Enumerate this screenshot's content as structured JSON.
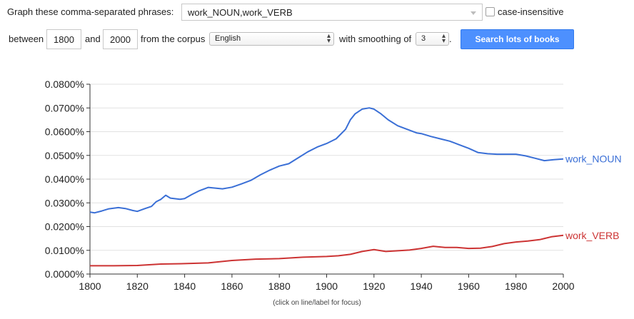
{
  "form": {
    "phrases_label": "Graph these comma-separated phrases:",
    "phrases_value": "work_NOUN,work_VERB",
    "case_insensitive_label": "case-insensitive",
    "between_label": "between",
    "start_year": "1800",
    "and_label": "and",
    "end_year": "2000",
    "corpus_label": "from the corpus",
    "corpus_value": "English",
    "smoothing_label": "with smoothing of",
    "smoothing_value": "3",
    "period": ".",
    "search_button": "Search lots of books"
  },
  "footer": {
    "focus_hint": "(click on line/label for focus)"
  },
  "chart_data": {
    "type": "line",
    "x_range": [
      1800,
      2000
    ],
    "y_range": [
      0,
      0.08
    ],
    "y_unit": "%",
    "x_ticks": [
      1800,
      1820,
      1840,
      1860,
      1880,
      1900,
      1920,
      1940,
      1960,
      1980,
      2000
    ],
    "y_ticks": [
      "0.0000%",
      "0.0100%",
      "0.0200%",
      "0.0300%",
      "0.0400%",
      "0.0500%",
      "0.0600%",
      "0.0700%",
      "0.0800%"
    ],
    "y_tick_values": [
      0,
      0.01,
      0.02,
      0.03,
      0.04,
      0.05,
      0.06,
      0.07,
      0.08
    ],
    "grid": true,
    "series": [
      {
        "name": "work_NOUN",
        "color": "#3a6fd6",
        "x": [
          1800,
          1802,
          1805,
          1808,
          1812,
          1815,
          1818,
          1820,
          1823,
          1826,
          1828,
          1830,
          1832,
          1834,
          1838,
          1840,
          1843,
          1846,
          1850,
          1853,
          1856,
          1860,
          1864,
          1868,
          1872,
          1876,
          1880,
          1884,
          1888,
          1892,
          1896,
          1900,
          1904,
          1908,
          1910,
          1912,
          1915,
          1918,
          1920,
          1923,
          1926,
          1930,
          1934,
          1938,
          1940,
          1944,
          1948,
          1952,
          1956,
          1960,
          1964,
          1968,
          1972,
          1976,
          1980,
          1984,
          1988,
          1992,
          1996,
          2000
        ],
        "values": [
          0.0261,
          0.0258,
          0.0266,
          0.0275,
          0.028,
          0.0276,
          0.0268,
          0.0264,
          0.0275,
          0.0285,
          0.0305,
          0.0315,
          0.0332,
          0.032,
          0.0315,
          0.0318,
          0.0335,
          0.035,
          0.0365,
          0.0362,
          0.0359,
          0.0366,
          0.038,
          0.0395,
          0.0418,
          0.0438,
          0.0455,
          0.0465,
          0.049,
          0.0515,
          0.0535,
          0.055,
          0.057,
          0.061,
          0.065,
          0.0675,
          0.0695,
          0.07,
          0.0695,
          0.0675,
          0.065,
          0.0625,
          0.061,
          0.0595,
          0.0592,
          0.058,
          0.057,
          0.056,
          0.0545,
          0.053,
          0.0512,
          0.0507,
          0.0505,
          0.0505,
          0.0505,
          0.0498,
          0.0488,
          0.0478,
          0.0482,
          0.0485
        ]
      },
      {
        "name": "work_VERB",
        "color": "#cc3333",
        "x": [
          1800,
          1810,
          1820,
          1830,
          1840,
          1850,
          1860,
          1870,
          1880,
          1890,
          1900,
          1905,
          1910,
          1915,
          1920,
          1925,
          1930,
          1935,
          1940,
          1945,
          1950,
          1955,
          1960,
          1965,
          1970,
          1975,
          1980,
          1985,
          1990,
          1995,
          2000
        ],
        "values": [
          0.0035,
          0.0035,
          0.0036,
          0.0042,
          0.0044,
          0.0047,
          0.0057,
          0.0063,
          0.0065,
          0.0071,
          0.0074,
          0.0077,
          0.0083,
          0.0095,
          0.0103,
          0.0095,
          0.0098,
          0.0101,
          0.0108,
          0.0117,
          0.0112,
          0.0112,
          0.0108,
          0.0109,
          0.0116,
          0.0128,
          0.0135,
          0.0139,
          0.0145,
          0.0157,
          0.0163
        ]
      }
    ]
  }
}
